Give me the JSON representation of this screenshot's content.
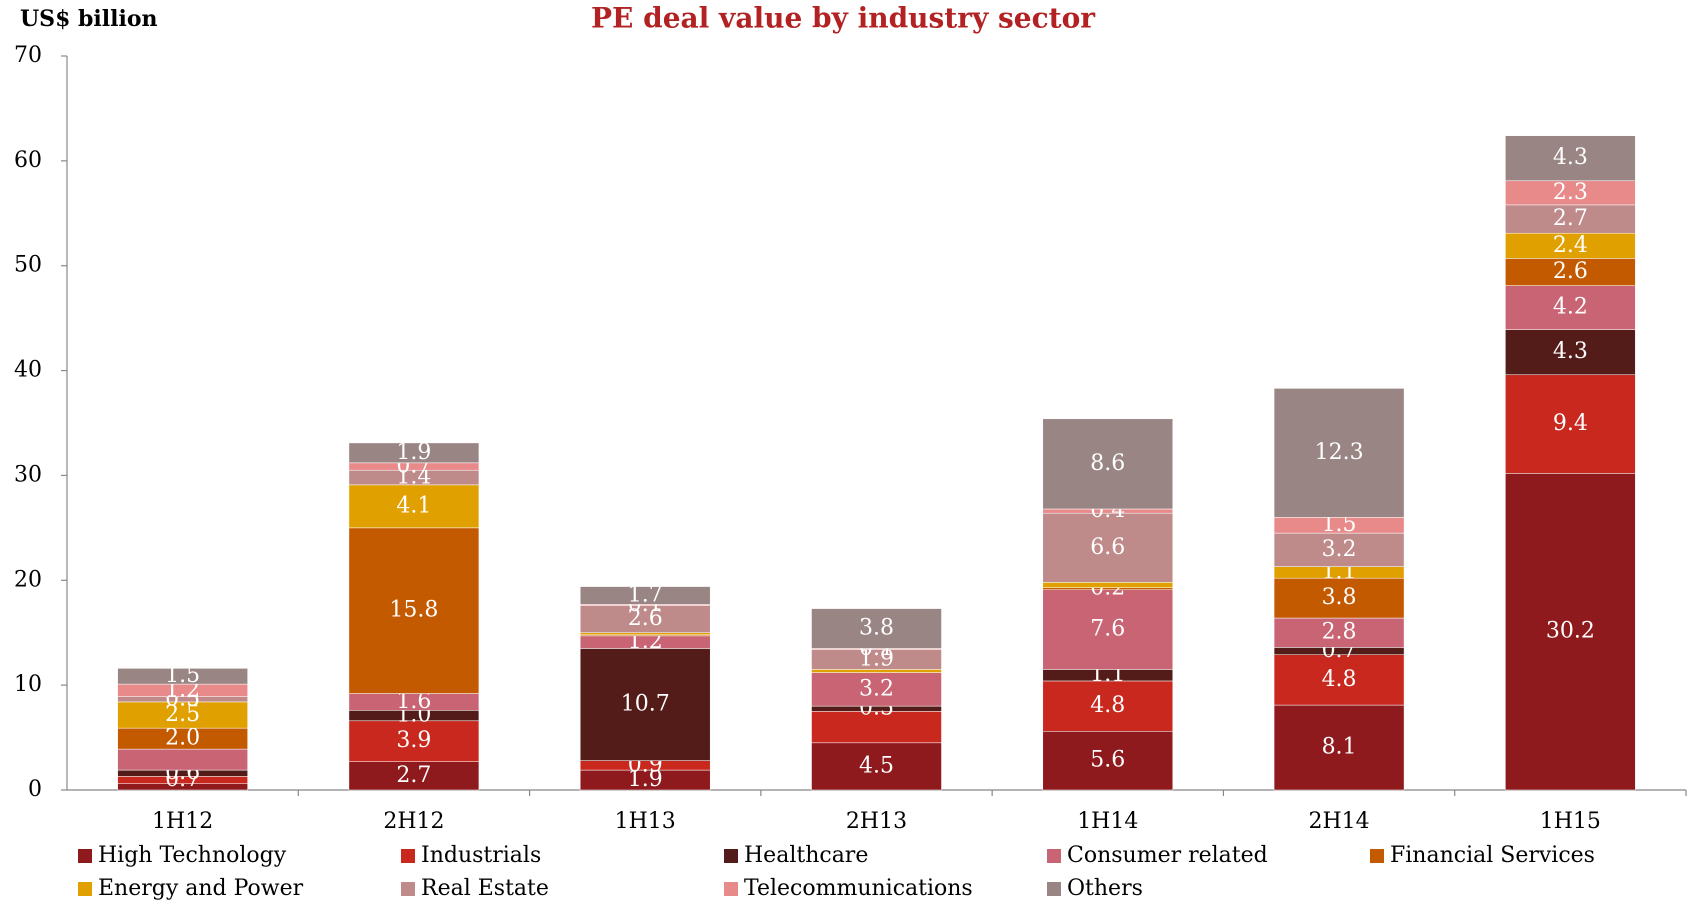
{
  "chart_data": {
    "type": "stacked_bar",
    "title": "PE deal value by industry sector",
    "y_label": "US$ billion",
    "categories": [
      "1H12",
      "2H12",
      "1H13",
      "2H13",
      "1H14",
      "2H14",
      "1H15"
    ],
    "ylim": [
      0,
      70
    ],
    "yticks": [
      0,
      10,
      20,
      30,
      40,
      50,
      60,
      70
    ],
    "grid": false,
    "legend": "bottom",
    "series": [
      {
        "name": "High Technology",
        "color": "#8e1a1e",
        "values": [
          0.6,
          2.7,
          1.9,
          4.5,
          5.6,
          8.1,
          30.2
        ],
        "value_labels": [
          null,
          "2.7",
          "1.9",
          "4.5",
          "5.6",
          "8.1",
          "30.2"
        ]
      },
      {
        "name": "Industrials",
        "color": "#c8281e",
        "values": [
          0.7,
          3.9,
          0.9,
          3.0,
          4.8,
          4.8,
          9.4
        ],
        "value_labels": [
          "0.7",
          "3.9",
          "0.9",
          null,
          "4.8",
          "4.8",
          "9.4"
        ]
      },
      {
        "name": "Healthcare",
        "color": "#541c18",
        "values": [
          0.6,
          1.0,
          10.7,
          0.5,
          1.1,
          0.7,
          4.3
        ],
        "value_labels": [
          "0.6",
          "1.0",
          "10.7",
          "0.5",
          "1.1",
          "0.7",
          "4.3"
        ]
      },
      {
        "name": "Consumer related",
        "color": "#c86474",
        "values": [
          2.0,
          1.6,
          1.2,
          3.2,
          7.6,
          2.8,
          4.2
        ],
        "value_labels": [
          null,
          "1.6",
          "1.2",
          "3.2",
          "7.6",
          "2.8",
          "4.2"
        ]
      },
      {
        "name": "Financial Services",
        "color": "#c45a00",
        "values": [
          2.0,
          15.8,
          0.1,
          0,
          0.2,
          3.8,
          2.6
        ],
        "value_labels": [
          "2.0",
          "15.8",
          null,
          null,
          "0.2",
          "3.8",
          "2.6"
        ]
      },
      {
        "name": "Energy and Power",
        "color": "#e0a000",
        "values": [
          2.5,
          4.1,
          0.2,
          0.3,
          0.5,
          1.1,
          2.4
        ],
        "value_labels": [
          "2.5",
          "4.1",
          null,
          null,
          null,
          "1.1",
          "2.4"
        ]
      },
      {
        "name": "Real Estate",
        "color": "#bf8a8a",
        "values": [
          0.5,
          1.4,
          2.6,
          1.9,
          6.6,
          3.2,
          2.7
        ],
        "value_labels": [
          "0.5",
          "1.4",
          "2.6",
          "1.9",
          "6.6",
          "3.2",
          "2.7"
        ]
      },
      {
        "name": "Telecommunications",
        "color": "#e88a8a",
        "values": [
          1.2,
          0.7,
          0.1,
          0.1,
          0.4,
          1.5,
          2.3
        ],
        "value_labels": [
          "1.2",
          "0.7",
          "0.1",
          "0.1",
          "0.4",
          "1.5",
          "2.3"
        ]
      },
      {
        "name": "Others",
        "color": "#9a8585",
        "values": [
          1.5,
          1.9,
          1.7,
          3.8,
          8.6,
          12.3,
          4.3
        ],
        "value_labels": [
          "1.5",
          "1.9",
          "1.7",
          "3.8",
          "8.6",
          "12.3",
          "4.3"
        ]
      }
    ]
  }
}
